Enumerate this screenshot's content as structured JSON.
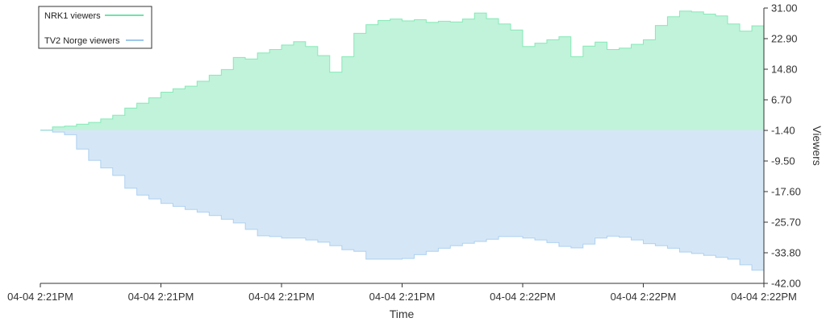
{
  "chart_data": {
    "type": "area",
    "xlabel": "Time",
    "ylabel": "Viewers",
    "ylim": [
      -42.0,
      31.0
    ],
    "y_ticks": [
      "31.00",
      "22.90",
      "14.80",
      "6.70",
      "-1.40",
      "-9.50",
      "-17.60",
      "-25.70",
      "-33.80",
      "-42.00"
    ],
    "x_ticks": [
      "04-04 2:21PM",
      "04-04 2:21PM",
      "04-04 2:21PM",
      "04-04 2:21PM",
      "04-04 2:22PM",
      "04-04 2:22PM",
      "04-04 2:22PM"
    ],
    "x_range": [
      0,
      60
    ],
    "y_axis_side": "right",
    "legend_position": "top-left",
    "series": [
      {
        "name": "NRK1 viewers",
        "color": "#3fdc8e",
        "x": [
          0,
          1,
          2,
          3,
          4,
          5,
          6,
          7,
          8,
          9,
          10,
          11,
          12,
          13,
          14,
          15,
          16,
          17,
          18,
          19,
          20,
          21,
          22,
          23,
          24,
          25,
          26,
          27,
          28,
          29,
          30,
          31,
          32,
          33,
          34,
          35,
          36,
          37,
          38,
          39,
          40,
          41,
          42,
          43,
          44,
          45,
          46,
          47,
          48,
          49,
          50,
          51,
          52,
          53,
          54,
          55,
          56,
          57,
          58,
          59,
          60
        ],
        "values": [
          -1.4,
          -0.5,
          -0.3,
          0.2,
          0.7,
          1.6,
          2.6,
          4.5,
          5.8,
          7.2,
          8.7,
          9.6,
          10.3,
          11.6,
          13.2,
          14.7,
          17.9,
          17.5,
          19.1,
          20.0,
          21.2,
          22.1,
          20.8,
          18.4,
          14.0,
          18.1,
          24.3,
          26.6,
          27.7,
          28.1,
          27.6,
          27.9,
          27.2,
          27.5,
          27.3,
          28.1,
          29.7,
          28.2,
          26.8,
          25.2,
          20.8,
          21.7,
          22.6,
          23.4,
          18.1,
          20.9,
          22.0,
          20.0,
          20.4,
          21.4,
          22.6,
          26.4,
          28.7,
          30.2,
          30.0,
          29.4,
          28.9,
          26.8,
          24.9,
          26.3,
          25.5
        ]
      },
      {
        "name": "TV2 Norge viewers",
        "color": "#7fb6e8",
        "x": [
          0,
          1,
          2,
          3,
          4,
          5,
          6,
          7,
          8,
          9,
          10,
          11,
          12,
          13,
          14,
          15,
          16,
          17,
          18,
          19,
          20,
          21,
          22,
          23,
          24,
          25,
          26,
          27,
          28,
          29,
          30,
          31,
          32,
          33,
          34,
          35,
          36,
          37,
          38,
          39,
          40,
          41,
          42,
          43,
          44,
          45,
          46,
          47,
          48,
          49,
          50,
          51,
          52,
          53,
          54,
          55,
          56,
          57,
          58,
          59,
          60
        ],
        "values": [
          -1.4,
          -1.9,
          -2.6,
          -6.4,
          -9.4,
          -11.4,
          -13.4,
          -16.8,
          -18.6,
          -19.6,
          -20.8,
          -21.6,
          -22.4,
          -23.1,
          -24.0,
          -25.0,
          -26.0,
          -27.7,
          -29.4,
          -29.6,
          -30.0,
          -30.0,
          -30.5,
          -31.1,
          -32.0,
          -33.1,
          -33.5,
          -35.6,
          -35.6,
          -35.6,
          -35.4,
          -34.4,
          -33.5,
          -32.7,
          -32.0,
          -31.4,
          -30.9,
          -30.3,
          -29.6,
          -29.6,
          -30.0,
          -30.5,
          -31.2,
          -32.2,
          -32.6,
          -31.6,
          -30.0,
          -29.5,
          -29.8,
          -30.5,
          -31.5,
          -32.0,
          -32.7,
          -33.7,
          -34.1,
          -34.6,
          -35.1,
          -35.6,
          -37.1,
          -38.5,
          -40.2
        ]
      }
    ]
  }
}
